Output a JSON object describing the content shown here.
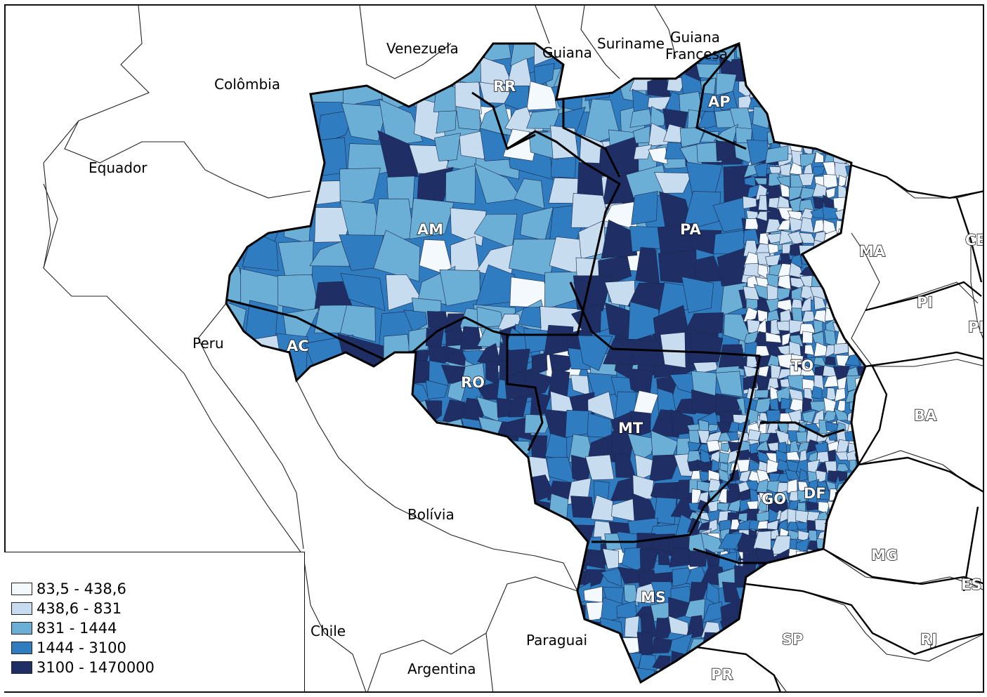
{
  "legend": {
    "classes": [
      {
        "label": "83,5 - 438,6",
        "color": "#f4f9fe"
      },
      {
        "label": "438,6 - 831",
        "color": "#c7dcef"
      },
      {
        "label": "831 - 1444",
        "color": "#6baed6"
      },
      {
        "label": "1444 - 3100",
        "color": "#2f7cc0"
      },
      {
        "label": "3100 - 1470000",
        "color": "#1f2f66"
      }
    ]
  },
  "countries": [
    {
      "id": "colombia",
      "label": "Colômbia"
    },
    {
      "id": "venezuela",
      "label": "Venezuela"
    },
    {
      "id": "guiana",
      "label": "Guiana"
    },
    {
      "id": "suriname",
      "label": "Suriname"
    },
    {
      "id": "guiana-francesa-1",
      "label": "Guiana"
    },
    {
      "id": "guiana-francesa-2",
      "label": "Francesa"
    },
    {
      "id": "equador",
      "label": "Equador"
    },
    {
      "id": "peru",
      "label": "Peru"
    },
    {
      "id": "bolivia",
      "label": "Bolívia"
    },
    {
      "id": "chile",
      "label": "Chile"
    },
    {
      "id": "paraguai",
      "label": "Paraguai"
    },
    {
      "id": "argentina",
      "label": "Argentina"
    }
  ],
  "states": [
    {
      "id": "am",
      "label": "AM"
    },
    {
      "id": "rr",
      "label": "RR"
    },
    {
      "id": "ap",
      "label": "AP"
    },
    {
      "id": "pa",
      "label": "PA"
    },
    {
      "id": "ac",
      "label": "AC"
    },
    {
      "id": "ro",
      "label": "RO"
    },
    {
      "id": "mt",
      "label": "MT"
    },
    {
      "id": "to",
      "label": "TO"
    },
    {
      "id": "go",
      "label": "GO"
    },
    {
      "id": "df",
      "label": "DF"
    },
    {
      "id": "ms",
      "label": "MS"
    }
  ],
  "neighbor_states": [
    {
      "id": "ma",
      "label": "MA"
    },
    {
      "id": "pi",
      "label": "PI"
    },
    {
      "id": "ce",
      "label": "CE"
    },
    {
      "id": "pe",
      "label": "PE"
    },
    {
      "id": "ba",
      "label": "BA"
    },
    {
      "id": "mg",
      "label": "MG"
    },
    {
      "id": "es",
      "label": "ES"
    },
    {
      "id": "sp",
      "label": "SP"
    },
    {
      "id": "rj",
      "label": "RJ"
    },
    {
      "id": "pr",
      "label": "PR"
    }
  ]
}
